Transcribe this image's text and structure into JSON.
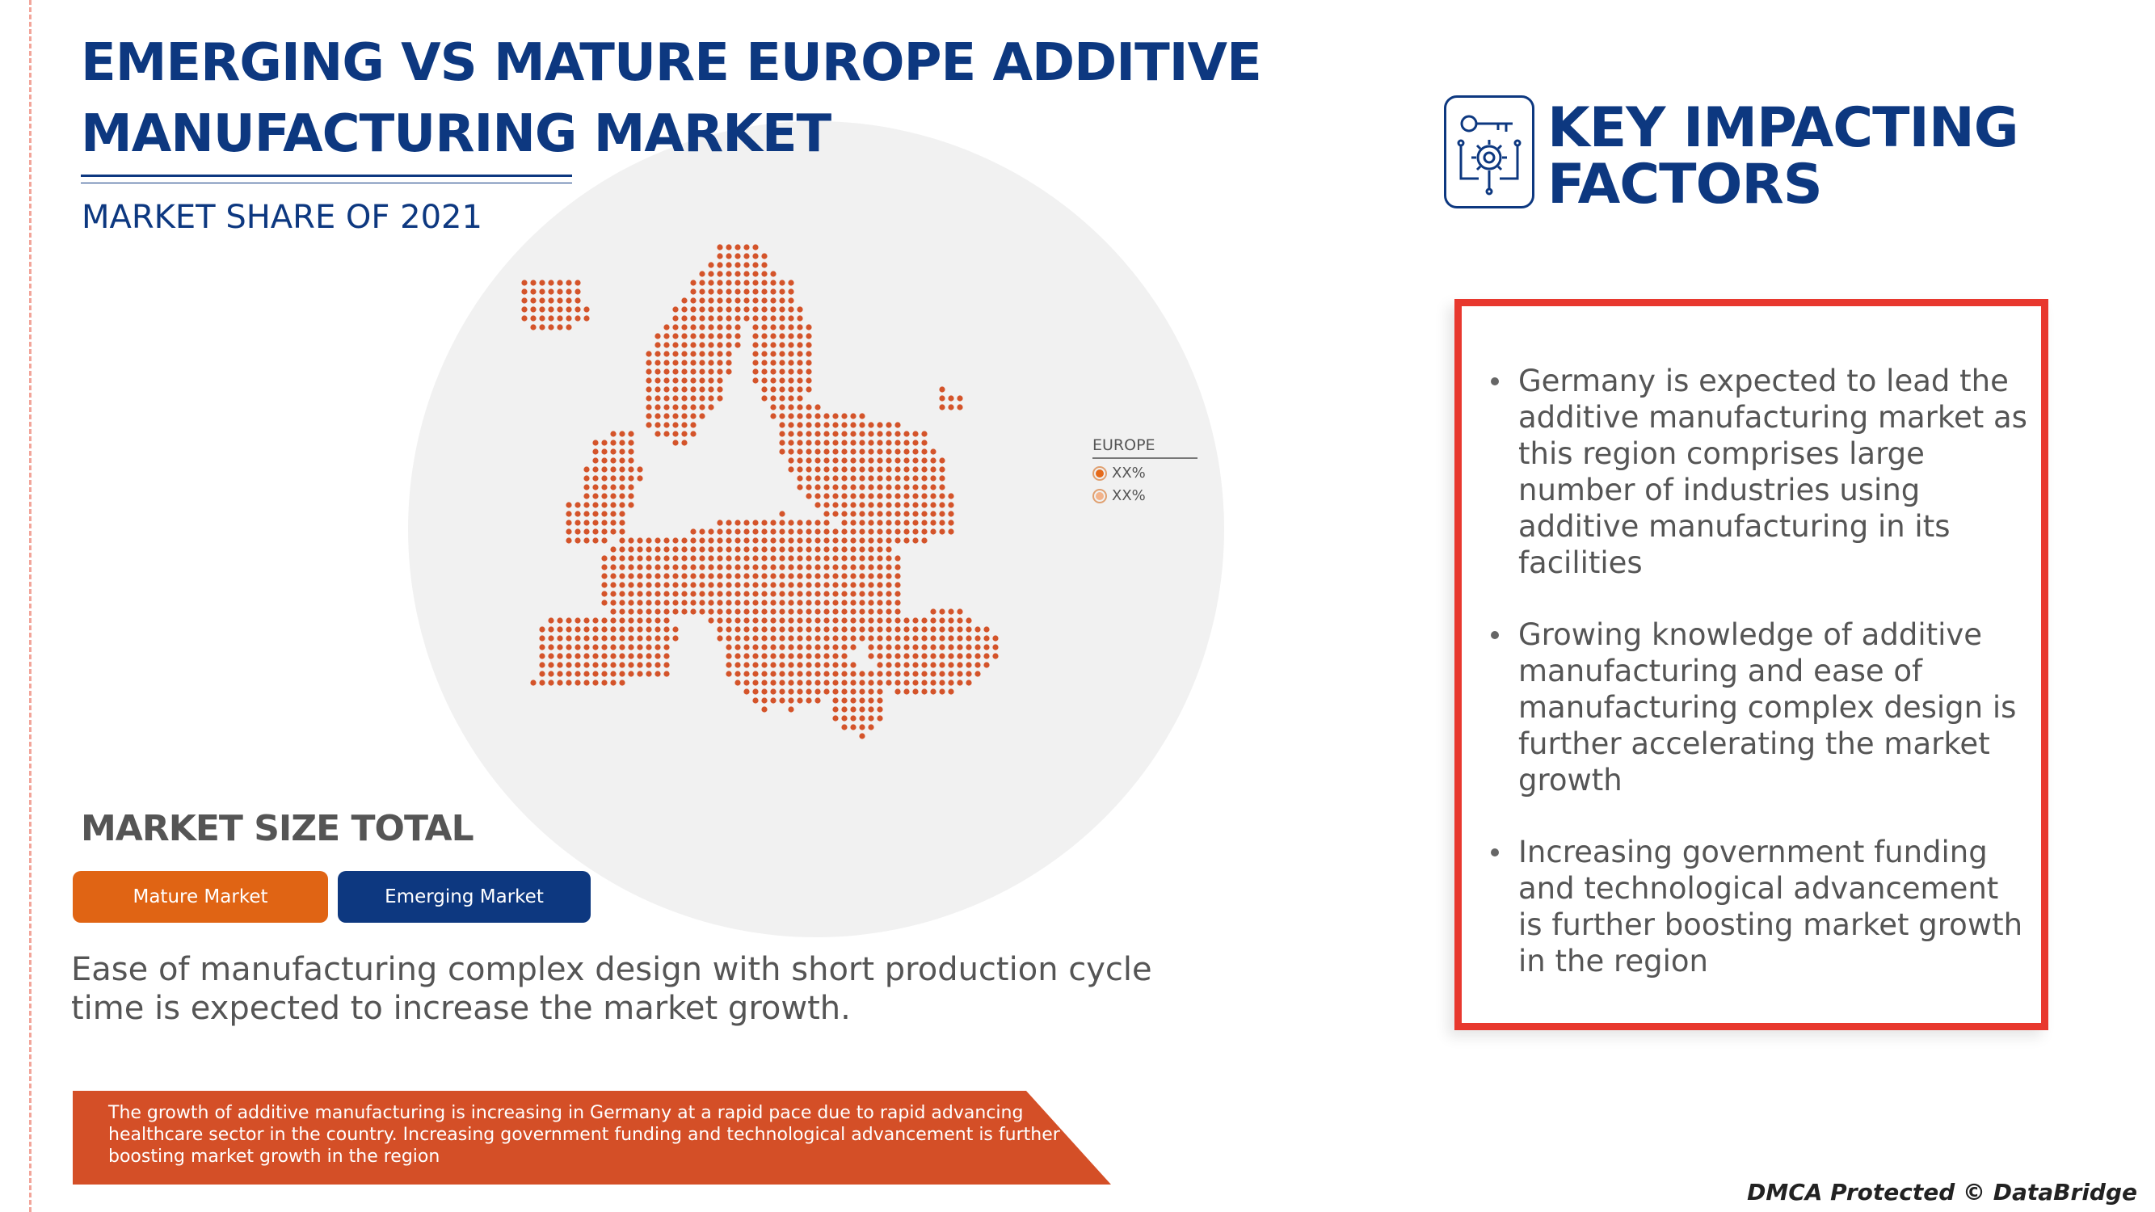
{
  "header": {
    "title": "EMERGING VS MATURE EUROPE ADDITIVE MANUFACTURING MARKET",
    "subtitle": "MARKET SHARE OF 2021"
  },
  "map": {
    "legend": {
      "title": "EUROPE",
      "items": [
        {
          "label": "XX%"
        },
        {
          "label": "XX%"
        }
      ]
    },
    "dot_color": "#d4542a"
  },
  "market_size": {
    "title": "MARKET SIZE TOTAL",
    "buttons": {
      "mature": "Mature Market",
      "emerging": "Emerging Market"
    },
    "description": "Ease of manufacturing complex design with short production cycle time is expected to increase the market growth."
  },
  "banner": {
    "text": "The growth of additive manufacturing is increasing in Germany at a rapid pace due to rapid advancing healthcare sector in the country. Increasing government funding and technological advancement is further boosting market growth in the region"
  },
  "key_factors": {
    "title": "KEY IMPACTING FACTORS",
    "items": [
      "Germany is expected to lead the additive manufacturing market as this region comprises large number of industries using additive manufacturing in its facilities",
      "Growing knowledge of additive manufacturing and ease of manufacturing complex design is further accelerating the market growth",
      "Increasing government funding and technological advancement is further boosting market growth in the region"
    ]
  },
  "footer": {
    "text": "DMCA Protected © DataBridge"
  },
  "colors": {
    "navy": "#0d3880",
    "orange": "#e06414",
    "red_border": "#e8382e",
    "banner": "#d44f27",
    "gray_text": "#555555"
  }
}
